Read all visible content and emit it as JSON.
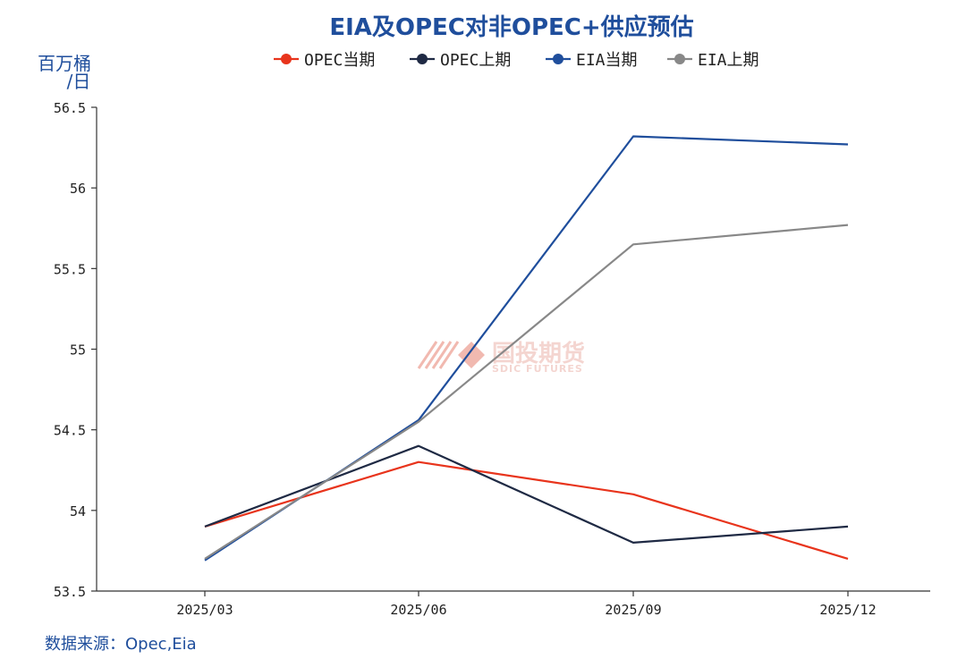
{
  "chart_data": {
    "type": "line",
    "title": "EIA及OPEC对非OPEC+供应预估",
    "ylabel": "百万桶/日",
    "ylabel_lines": [
      "百万桶",
      "/日"
    ],
    "xlabel": "",
    "categories": [
      "2025/03",
      "2025/06",
      "2025/09",
      "2025/12"
    ],
    "ylim": [
      53.5,
      56.5
    ],
    "yticks": [
      53.5,
      54,
      54.5,
      55,
      55.5,
      56,
      56.5
    ],
    "ytick_labels": [
      "53.5",
      "54",
      "54.5",
      "55",
      "55.5",
      "56",
      "56.5"
    ],
    "grid": false,
    "legend_position": "top",
    "series": [
      {
        "name": "OPEC当期",
        "color": "#e8341c",
        "values": [
          53.9,
          54.3,
          54.1,
          53.7
        ]
      },
      {
        "name": "OPEC上期",
        "color": "#1f2a44",
        "values": [
          53.9,
          54.4,
          53.8,
          53.9
        ]
      },
      {
        "name": "EIA当期",
        "color": "#1f4e9c",
        "values": [
          53.69,
          54.56,
          56.32,
          56.27
        ]
      },
      {
        "name": "EIA上期",
        "color": "#888888",
        "values": [
          53.7,
          54.55,
          55.65,
          55.77
        ]
      }
    ],
    "source": "数据来源：Opec,Eia",
    "watermark": {
      "cn": "国投期货",
      "en": "SDIC FUTURES"
    }
  }
}
